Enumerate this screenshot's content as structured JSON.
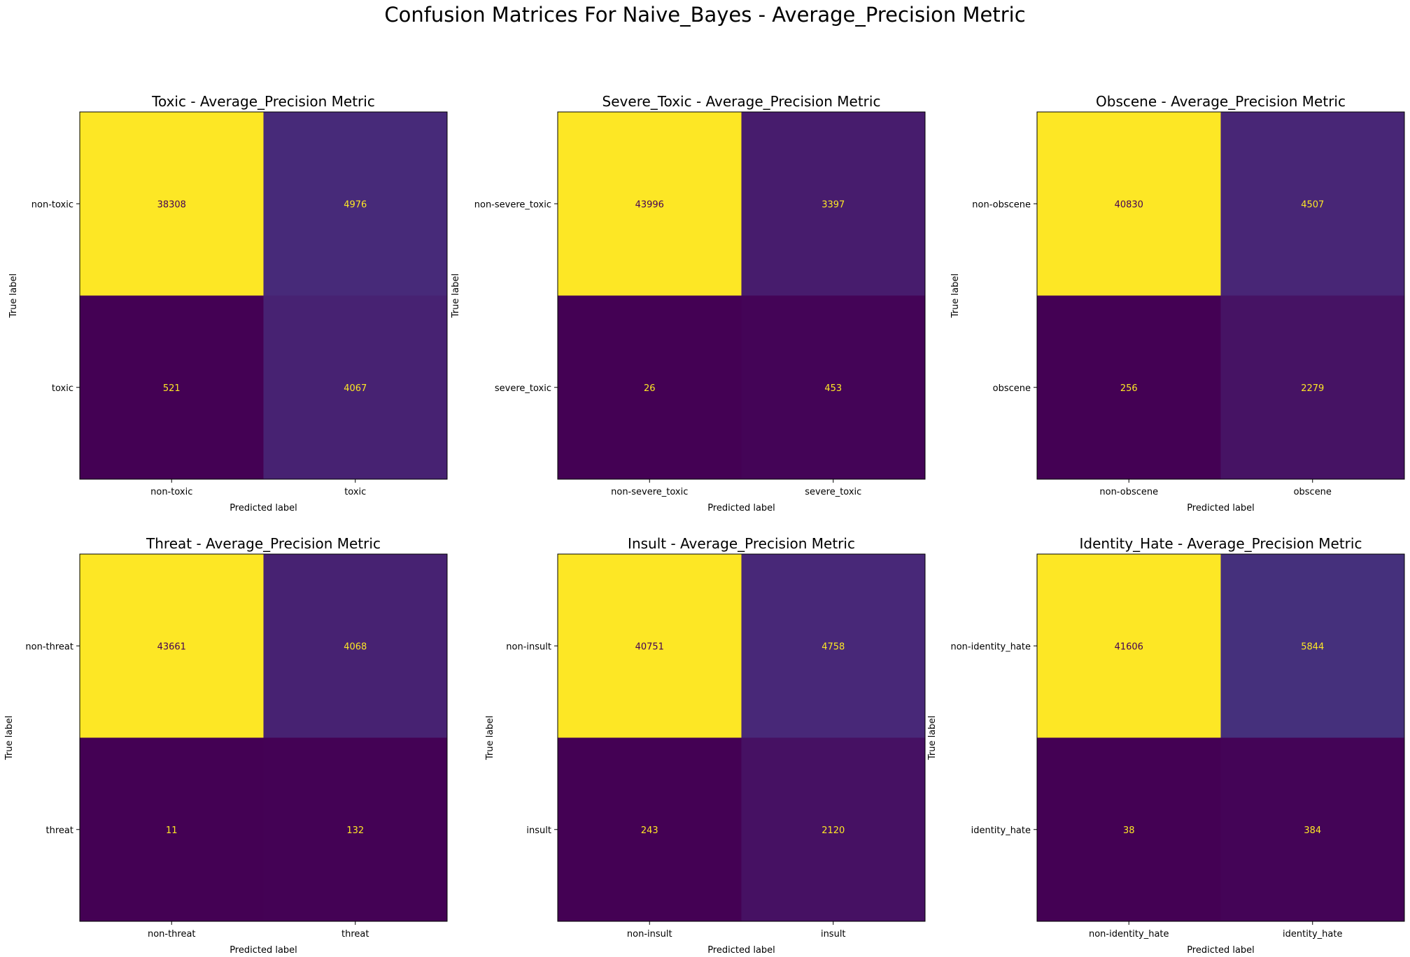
{
  "figure": {
    "title": "Confusion Matrices For Naive_Bayes - Average_Precision Metric",
    "colormap": [
      "#440154",
      "#482878",
      "#3e4989",
      "#31688e",
      "#26828e",
      "#1f9e89",
      "#35b779",
      "#6ece58",
      "#b5de2b",
      "#fde725"
    ]
  },
  "chart_data": [
    {
      "type": "heatmap",
      "title": "Toxic - Average_Precision Metric",
      "xlabel": "Predicted label",
      "ylabel": "True label",
      "x_ticklabels": [
        "non-toxic",
        "toxic"
      ],
      "y_ticklabels": [
        "non-toxic",
        "toxic"
      ],
      "values": [
        [
          38308,
          4976
        ],
        [
          521,
          4067
        ]
      ],
      "grid": false,
      "colorbar": false
    },
    {
      "type": "heatmap",
      "title": "Severe_Toxic - Average_Precision Metric",
      "xlabel": "Predicted label",
      "ylabel": "True label",
      "x_ticklabels": [
        "non-severe_toxic",
        "severe_toxic"
      ],
      "y_ticklabels": [
        "non-severe_toxic",
        "severe_toxic"
      ],
      "values": [
        [
          43996,
          3397
        ],
        [
          26,
          453
        ]
      ],
      "grid": false,
      "colorbar": false
    },
    {
      "type": "heatmap",
      "title": "Obscene - Average_Precision Metric",
      "xlabel": "Predicted label",
      "ylabel": "True label",
      "x_ticklabels": [
        "non-obscene",
        "obscene"
      ],
      "y_ticklabels": [
        "non-obscene",
        "obscene"
      ],
      "values": [
        [
          40830,
          4507
        ],
        [
          256,
          2279
        ]
      ],
      "grid": false,
      "colorbar": false
    },
    {
      "type": "heatmap",
      "title": "Threat - Average_Precision Metric",
      "xlabel": "Predicted label",
      "ylabel": "True label",
      "x_ticklabels": [
        "non-threat",
        "threat"
      ],
      "y_ticklabels": [
        "non-threat",
        "threat"
      ],
      "values": [
        [
          43661,
          4068
        ],
        [
          11,
          132
        ]
      ],
      "grid": false,
      "colorbar": false
    },
    {
      "type": "heatmap",
      "title": "Insult - Average_Precision Metric",
      "xlabel": "Predicted label",
      "ylabel": "True label",
      "x_ticklabels": [
        "non-insult",
        "insult"
      ],
      "y_ticklabels": [
        "non-insult",
        "insult"
      ],
      "values": [
        [
          40751,
          4758
        ],
        [
          243,
          2120
        ]
      ],
      "grid": false,
      "colorbar": false
    },
    {
      "type": "heatmap",
      "title": "Identity_Hate - Average_Precision Metric",
      "xlabel": "Predicted label",
      "ylabel": "True label",
      "x_ticklabels": [
        "non-identity_hate",
        "identity_hate"
      ],
      "y_ticklabels": [
        "non-identity_hate",
        "identity_hate"
      ],
      "values": [
        [
          41606,
          5844
        ],
        [
          38,
          384
        ]
      ],
      "grid": false,
      "colorbar": false
    }
  ]
}
